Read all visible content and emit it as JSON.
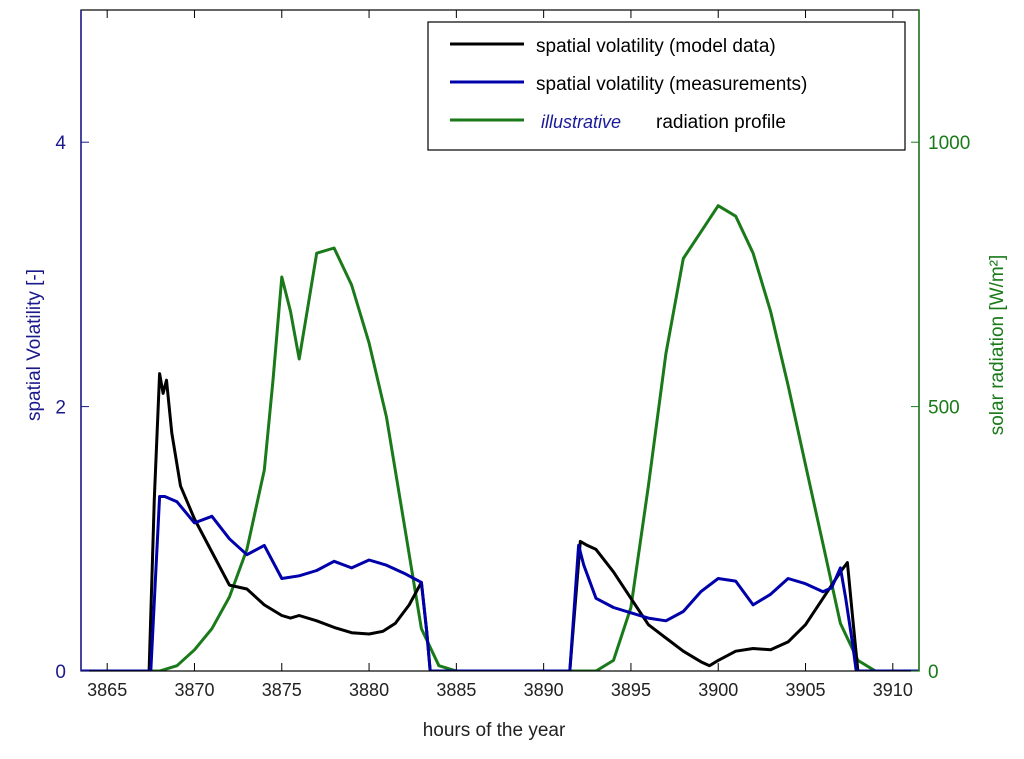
{
  "chart_data": {
    "type": "line",
    "title": "",
    "xlabel": "hours of the year",
    "ylabel_left": "spatial Volatility [-]",
    "ylabel_right": "solar radiation [W/m²]",
    "xlim": [
      3863.5,
      3911.5
    ],
    "ylim_left": [
      0,
      5
    ],
    "ylim_right": [
      0,
      1250
    ],
    "x_ticks": [
      3865,
      3870,
      3875,
      3880,
      3885,
      3890,
      3895,
      3900,
      3905,
      3910
    ],
    "y_ticks_left": [
      0,
      2,
      4
    ],
    "y_ticks_right": [
      0,
      500,
      1000
    ],
    "grid": false,
    "legend_position": "top-right",
    "legend": [
      {
        "label": "spatial volatility (model data)",
        "color": "#000000"
      },
      {
        "label": "spatial volatility (measurements)",
        "color": "#0000aa"
      },
      {
        "label_prefix": "illustrative",
        "label": "radiation profile",
        "color": "#1a7a1a"
      }
    ],
    "colors": {
      "left_axis": "#1a1a8c",
      "right_axis": "#1a7a1a"
    },
    "series": [
      {
        "name": "spatial volatility (model data)",
        "axis": "left",
        "color": "#000000",
        "x": [
          3863.5,
          3867.4,
          3867.7,
          3868.0,
          3868.2,
          3868.4,
          3868.7,
          3869.2,
          3870,
          3871,
          3872,
          3873,
          3874,
          3875,
          3875.5,
          3876,
          3877,
          3878,
          3879,
          3880,
          3880.8,
          3881.5,
          3882.3,
          3883,
          3883.3,
          3883.5,
          3891.5,
          3892.1,
          3892.5,
          3893,
          3894,
          3895,
          3896,
          3897,
          3898,
          3899,
          3899.5,
          3900,
          3901,
          3902,
          3903,
          3904,
          3905,
          3906,
          3907,
          3907.4,
          3907.7,
          3908.0,
          3911.5
        ],
        "y": [
          0,
          0,
          1.3,
          2.25,
          2.1,
          2.2,
          1.8,
          1.4,
          1.15,
          0.9,
          0.65,
          0.62,
          0.5,
          0.42,
          0.4,
          0.42,
          0.38,
          0.33,
          0.29,
          0.28,
          0.3,
          0.36,
          0.5,
          0.67,
          0.3,
          0,
          0,
          0.98,
          0.95,
          0.92,
          0.75,
          0.55,
          0.35,
          0.25,
          0.15,
          0.07,
          0.04,
          0.08,
          0.15,
          0.17,
          0.16,
          0.22,
          0.35,
          0.55,
          0.75,
          0.82,
          0.4,
          0,
          0
        ]
      },
      {
        "name": "spatial volatility (measurements)",
        "axis": "left",
        "color": "#0000aa",
        "x": [
          3863.5,
          3867.5,
          3868.0,
          3868.3,
          3869,
          3870,
          3871,
          3872,
          3873,
          3874,
          3875,
          3876,
          3877,
          3878,
          3879,
          3880,
          3881,
          3882,
          3883,
          3883.3,
          3883.5,
          3891.5,
          3892.0,
          3892.3,
          3893,
          3894,
          3895,
          3896,
          3897,
          3898,
          3899,
          3900,
          3901,
          3902,
          3903,
          3904,
          3905,
          3906,
          3906.5,
          3907,
          3907.3,
          3907.7,
          3907.9,
          3911.5
        ],
        "y": [
          0,
          0,
          1.32,
          1.32,
          1.28,
          1.12,
          1.17,
          1.0,
          0.88,
          0.95,
          0.7,
          0.72,
          0.76,
          0.83,
          0.78,
          0.84,
          0.8,
          0.74,
          0.67,
          0.3,
          0,
          0,
          0.95,
          0.8,
          0.55,
          0.48,
          0.44,
          0.4,
          0.38,
          0.45,
          0.6,
          0.7,
          0.68,
          0.5,
          0.58,
          0.7,
          0.66,
          0.6,
          0.63,
          0.78,
          0.55,
          0.2,
          0,
          0
        ]
      },
      {
        "name": "illustrative radiation profile",
        "axis": "right",
        "color": "#1a7a1a",
        "x": [
          3863.5,
          3868,
          3869,
          3870,
          3871,
          3872,
          3873,
          3874,
          3874.5,
          3875,
          3875.5,
          3876,
          3876.5,
          3877,
          3878,
          3879,
          3880,
          3881,
          3882,
          3883,
          3884,
          3885,
          3891,
          3893,
          3894,
          3895,
          3896,
          3897,
          3898,
          3899,
          3900,
          3901,
          3902,
          3903,
          3904,
          3905,
          3906,
          3907,
          3908,
          3909,
          3911.5
        ],
        "y": [
          0,
          0,
          10,
          40,
          80,
          140,
          230,
          380,
          550,
          745,
          680,
          590,
          690,
          790,
          800,
          730,
          620,
          480,
          280,
          80,
          10,
          0,
          0,
          0,
          20,
          120,
          350,
          600,
          780,
          830,
          880,
          860,
          790,
          680,
          540,
          390,
          240,
          90,
          20,
          0,
          0
        ]
      }
    ]
  }
}
